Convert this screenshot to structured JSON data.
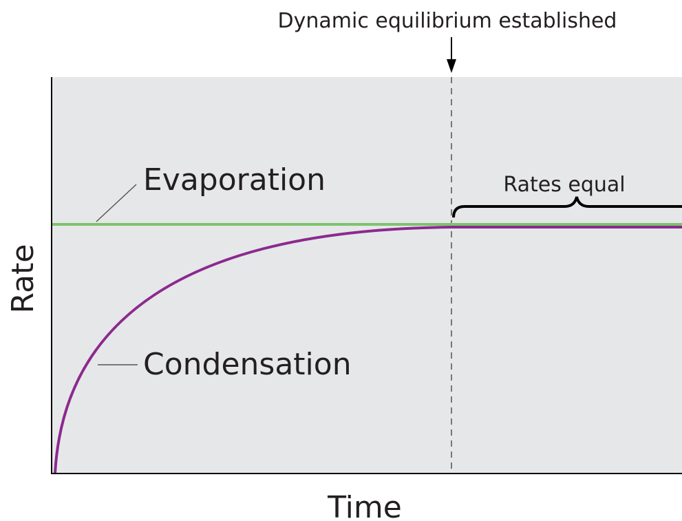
{
  "title": "Dynamic equilibrium established",
  "labels": {
    "evaporation": "Evaporation",
    "condensation": "Condensation",
    "rates_equal": "Rates equal"
  },
  "axes": {
    "y": "Rate",
    "x": "Time"
  }
}
